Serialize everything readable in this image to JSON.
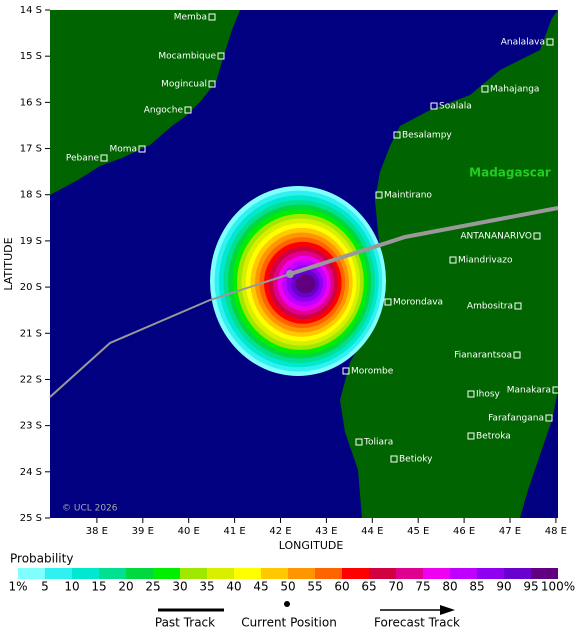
{
  "map": {
    "x_axis": {
      "label": "LONGITUDE",
      "ticks": [
        "38 E",
        "39 E",
        "40 E",
        "41 E",
        "42 E",
        "43 E",
        "44 E",
        "45 E",
        "46 E",
        "47 E",
        "48 E"
      ]
    },
    "y_axis": {
      "label": "LATITUDE",
      "ticks": [
        "14 S",
        "15 S",
        "16 S",
        "17 S",
        "18 S",
        "19 S",
        "20 S",
        "21 S",
        "22 S",
        "23 S",
        "24 S",
        "25 S"
      ]
    },
    "land_label": "Madagascar",
    "credit": "© UCL 2026",
    "cities": [
      "Memba",
      "Mocambique",
      "Mogincual",
      "Angoche",
      "Moma",
      "Pebane",
      "Analalava",
      "Mahajanga",
      "Soalala",
      "Besalampy",
      "Maintirano",
      "ANTANANARIVO",
      "Miandrivazo",
      "Morondava",
      "Ambositra",
      "Fianarantsoa",
      "Morombe",
      "Ihosy",
      "Manakara",
      "Farafangana",
      "Toliara",
      "Betroka",
      "Betioky"
    ]
  },
  "legend": {
    "title": "Probability",
    "scale": {
      "labels": [
        "1%",
        "5",
        "10",
        "15",
        "20",
        "25",
        "30",
        "35",
        "40",
        "45",
        "50",
        "55",
        "60",
        "65",
        "70",
        "75",
        "80",
        "85",
        "90",
        "95",
        "100%"
      ],
      "colors": [
        "#80ffff",
        "#30f0f0",
        "#00e8d0",
        "#00e090",
        "#00d840",
        "#00ee00",
        "#a0e800",
        "#d8f000",
        "#ffff00",
        "#ffc800",
        "#ff9600",
        "#ff6400",
        "#ff0000",
        "#d00040",
        "#e00090",
        "#f000f0",
        "#c000ff",
        "#9000f0",
        "#6800d0",
        "#600080"
      ]
    },
    "items": [
      "Past Track",
      "Current Position",
      "Forecast Track"
    ]
  }
}
